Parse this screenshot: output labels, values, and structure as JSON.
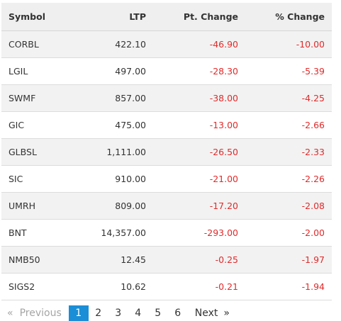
{
  "table": {
    "headers": {
      "symbol": "Symbol",
      "ltp": "LTP",
      "pt_change": "Pt. Change",
      "pct_change": "% Change"
    },
    "rows": [
      {
        "symbol": "CORBL",
        "ltp": "422.10",
        "pt_change": "-46.90",
        "pct_change": "-10.00"
      },
      {
        "symbol": "LGIL",
        "ltp": "497.00",
        "pt_change": "-28.30",
        "pct_change": "-5.39"
      },
      {
        "symbol": "SWMF",
        "ltp": "857.00",
        "pt_change": "-38.00",
        "pct_change": "-4.25"
      },
      {
        "symbol": "GIC",
        "ltp": "475.00",
        "pt_change": "-13.00",
        "pct_change": "-2.66"
      },
      {
        "symbol": "GLBSL",
        "ltp": "1,111.00",
        "pt_change": "-26.50",
        "pct_change": "-2.33"
      },
      {
        "symbol": "SIC",
        "ltp": "910.00",
        "pt_change": "-21.00",
        "pct_change": "-2.26"
      },
      {
        "symbol": "UMRH",
        "ltp": "809.00",
        "pt_change": "-17.20",
        "pct_change": "-2.08"
      },
      {
        "symbol": "BNT",
        "ltp": "14,357.00",
        "pt_change": "-293.00",
        "pct_change": "-2.00"
      },
      {
        "symbol": "NMB50",
        "ltp": "12.45",
        "pt_change": "-0.25",
        "pct_change": "-1.97"
      },
      {
        "symbol": "SIGS2",
        "ltp": "10.62",
        "pt_change": "-0.21",
        "pct_change": "-1.94"
      }
    ]
  },
  "pagination": {
    "prev_arrow": "«",
    "prev_label": "Previous",
    "pages": [
      "1",
      "2",
      "3",
      "4",
      "5",
      "6"
    ],
    "active_page": "1",
    "next_label": "Next",
    "next_arrow": "»"
  },
  "colors": {
    "negative": "#e02b2b",
    "active_page": "#1a8ed6",
    "header_bg": "#efefef",
    "alt_row_bg": "#f2f2f2"
  }
}
